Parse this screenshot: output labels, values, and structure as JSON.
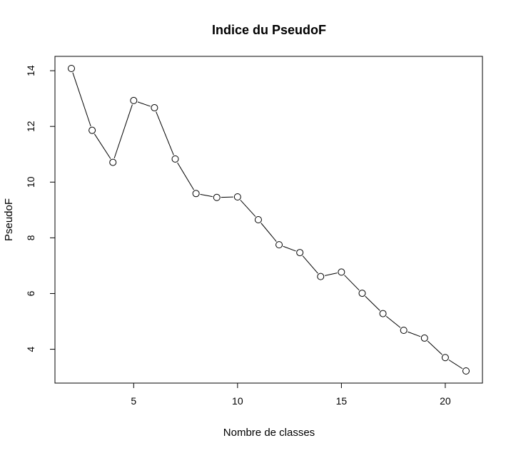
{
  "chart_data": {
    "type": "line",
    "title": "Indice du PseudoF",
    "xlabel": "Nombre de classes",
    "ylabel": "PseudoF",
    "xlim": [
      2,
      21
    ],
    "ylim": [
      3.22,
      14.08
    ],
    "x_ticks": [
      5,
      10,
      15,
      20
    ],
    "y_ticks": [
      4,
      6,
      8,
      10,
      12,
      14
    ],
    "grid": false,
    "legend": "none",
    "point_style": "open-circle",
    "line_color": "#000000",
    "series": [
      {
        "x": [
          2,
          3,
          4,
          5,
          6,
          7,
          8,
          9,
          10,
          11,
          12,
          13,
          14,
          15,
          16,
          17,
          18,
          19,
          20,
          21
        ],
        "values": [
          14.08,
          11.86,
          10.71,
          12.93,
          12.67,
          10.83,
          9.59,
          9.45,
          9.47,
          8.65,
          7.75,
          7.47,
          6.61,
          6.77,
          6.01,
          5.28,
          4.68,
          4.4,
          3.7,
          3.22
        ]
      }
    ]
  }
}
